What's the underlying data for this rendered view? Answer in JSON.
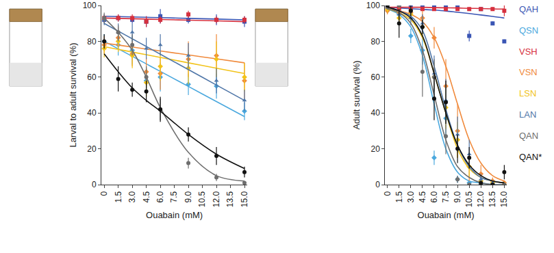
{
  "chart_data": [
    {
      "type": "scatter",
      "x_label": "Ouabain (mM)",
      "y_label": "Larval to adult survival (%)",
      "xlim": [
        -0.3,
        15.3
      ],
      "ylim": [
        0,
        100
      ],
      "xticks": [
        0,
        1.5,
        {
          "value": 3,
          "label": "3.0"
        },
        {
          "value": 4.5,
          "label": "4.5"
        },
        {
          "value": 6,
          "label": "6.0"
        },
        {
          "value": 7.5,
          "label": "7.5"
        },
        {
          "value": 9,
          "label": "9.0"
        },
        10.5,
        {
          "value": 12,
          "label": "12.0"
        },
        13.5,
        {
          "value": 15,
          "label": "15.0"
        }
      ],
      "yticks": [
        0,
        20,
        40,
        60,
        80,
        100
      ],
      "grid": false,
      "x": [
        0,
        1.5,
        3,
        4.5,
        6,
        9,
        12,
        15
      ],
      "series": [
        {
          "name": "QAH",
          "color": "#3a55b4",
          "marker": "square",
          "values": [
            92,
            93,
            92,
            91,
            94,
            92,
            92,
            91
          ],
          "errors": [
            2,
            2,
            2,
            3,
            4,
            2,
            3,
            3
          ],
          "fit": [
            94,
            93.8,
            93.6,
            93.4,
            93.2,
            92.8,
            92.4,
            92
          ]
        },
        {
          "name": "QSN",
          "color": "#4aa8de",
          "marker": "diamond",
          "values": [
            80,
            78,
            75,
            58,
            60,
            56,
            55,
            41
          ],
          "errors": [
            4,
            6,
            8,
            7,
            8,
            6,
            7,
            5
          ],
          "fit": [
            80,
            75.8,
            71.6,
            67.4,
            63.2,
            54.8,
            46.4,
            38
          ]
        },
        {
          "name": "VSH",
          "color": "#d6303e",
          "marker": "square",
          "values": [
            93,
            93,
            93,
            91,
            92,
            95,
            92,
            92
          ],
          "errors": [
            2,
            2,
            2,
            3,
            2,
            2,
            2,
            2
          ],
          "fit": [
            93,
            92.8,
            92.6,
            92.4,
            92.2,
            91.8,
            91.4,
            91
          ]
        },
        {
          "name": "VSN",
          "color": "#f08a3c",
          "marker": "diamond",
          "values": [
            78,
            82,
            73,
            63,
            62,
            70,
            72,
            58
          ],
          "errors": [
            5,
            6,
            7,
            8,
            9,
            10,
            12,
            10
          ],
          "fit": [
            79,
            77.9,
            76.8,
            75.7,
            74.6,
            72.4,
            70.2,
            68
          ]
        },
        {
          "name": "LSN",
          "color": "#f2c31a",
          "marker": "diamond",
          "values": [
            76,
            80,
            72,
            57,
            66,
            65,
            70,
            60
          ],
          "errors": [
            5,
            6,
            7,
            8,
            8,
            9,
            10,
            8
          ],
          "fit": [
            77,
            75.5,
            74,
            72.5,
            71,
            68,
            65,
            62
          ]
        },
        {
          "name": "LAN",
          "color": "#4f76a8",
          "marker": "triangle-up",
          "values": [
            92,
            85,
            85,
            76,
            78,
            72,
            58,
            47
          ],
          "errors": [
            3,
            5,
            5,
            6,
            6,
            7,
            7,
            6
          ],
          "fit": [
            90,
            85.7,
            81.4,
            77.1,
            72.8,
            64.2,
            55.6,
            47
          ]
        },
        {
          "name": "QAN",
          "color": "#6e6e6e",
          "marker": "circle",
          "values": [
            93,
            85,
            78,
            60,
            42,
            12,
            4,
            1
          ],
          "errors": [
            3,
            4,
            6,
            6,
            6,
            3,
            2,
            1
          ],
          "fit": [
            93,
            85,
            75,
            60,
            43,
            18,
            5,
            2
          ]
        },
        {
          "name": "QAN*",
          "color": "#111111",
          "marker": "circle",
          "values": [
            80,
            59,
            53,
            52,
            42,
            28,
            16,
            7
          ],
          "errors": [
            4,
            7,
            4,
            6,
            7,
            4,
            5,
            3
          ],
          "fit": [
            73,
            63,
            54,
            47,
            41,
            28,
            17,
            9
          ]
        }
      ]
    },
    {
      "type": "scatter",
      "x_label": "Ouabain (mM)",
      "y_label": "Adult survival (%)",
      "xlim": [
        -0.3,
        15.3
      ],
      "ylim": [
        0,
        100
      ],
      "xticks": [
        0,
        1.5,
        {
          "value": 3,
          "label": "3.0"
        },
        {
          "value": 4.5,
          "label": "4.5"
        },
        {
          "value": 6,
          "label": "6.0"
        },
        {
          "value": 7.5,
          "label": "7.5"
        },
        {
          "value": 9,
          "label": "9.0"
        },
        10.5,
        {
          "value": 12,
          "label": "12.0"
        },
        13.5,
        {
          "value": 15,
          "label": "15.0"
        }
      ],
      "yticks": [
        0,
        20,
        40,
        60,
        80,
        100
      ],
      "grid": false,
      "x": [
        0,
        1.5,
        3,
        4.5,
        6,
        7.5,
        9,
        10.5,
        12,
        13.5,
        15
      ],
      "series": [
        {
          "name": "QAH",
          "color": "#3a55b4",
          "marker": "square",
          "values": [
            100,
            99,
            100,
            100,
            100,
            100,
            100,
            83,
            98,
            90,
            80
          ],
          "errors": [
            1,
            1,
            1,
            1,
            1,
            1,
            1,
            3,
            1,
            1,
            1
          ],
          "fit": [
            99,
            98.6,
            98.2,
            97.8,
            97.4,
            96.9,
            96.2,
            95.5,
            94.7,
            93.9,
            93
          ]
        },
        {
          "name": "QSN",
          "color": "#4aa8de",
          "marker": "diamond",
          "values": [
            98,
            95,
            83,
            75,
            15,
            37,
            3,
            1,
            0,
            0,
            0
          ],
          "errors": [
            2,
            3,
            4,
            8,
            4,
            10,
            2,
            1,
            1,
            1,
            1
          ],
          "fit": [
            98,
            95,
            88,
            72,
            45,
            20,
            7,
            2,
            1,
            0,
            0
          ]
        },
        {
          "name": "VSH",
          "color": "#d6303e",
          "marker": "square",
          "values": [
            98,
            98,
            98,
            98,
            98,
            98,
            98,
            98,
            98,
            98,
            97
          ],
          "errors": [
            1,
            1,
            1,
            1,
            1,
            1,
            1,
            1,
            1,
            1,
            3
          ],
          "fit": [
            99,
            99,
            99,
            99,
            98.8,
            98.7,
            98.6,
            98.4,
            98.3,
            98.1,
            98
          ]
        },
        {
          "name": "VSN",
          "color": "#f08a3c",
          "marker": "diamond",
          "values": [
            97,
            96,
            96,
            93,
            82,
            55,
            30,
            10,
            6,
            2,
            1
          ],
          "errors": [
            2,
            3,
            3,
            4,
            6,
            15,
            15,
            8,
            5,
            2,
            1
          ],
          "fit": [
            98,
            97,
            95,
            91,
            82,
            66,
            45,
            25,
            12,
            5,
            2
          ]
        },
        {
          "name": "LSN",
          "color": "#f2c31a",
          "marker": "diamond",
          "values": [
            98,
            93,
            95,
            88,
            60,
            43,
            25,
            10,
            2,
            1,
            0
          ],
          "errors": [
            2,
            4,
            3,
            5,
            8,
            12,
            10,
            6,
            2,
            1,
            1
          ],
          "fit": [
            98,
            96,
            92,
            82,
            62,
            40,
            20,
            9,
            4,
            2,
            1
          ]
        },
        {
          "name": "LAN",
          "color": "#4f76a8",
          "marker": "triangle-up",
          "values": [
            99,
            95,
            93,
            90,
            62,
            47,
            28,
            17,
            3,
            1,
            0
          ],
          "errors": [
            1,
            3,
            4,
            5,
            10,
            12,
            10,
            8,
            3,
            1,
            1
          ],
          "fit": [
            99,
            97,
            94,
            86,
            66,
            42,
            22,
            10,
            4,
            2,
            1
          ]
        },
        {
          "name": "QAN",
          "color": "#6e6e6e",
          "marker": "circle",
          "values": [
            99,
            100,
            97,
            63,
            60,
            27,
            3,
            0,
            0,
            0,
            0
          ],
          "errors": [
            1,
            1,
            2,
            14,
            10,
            10,
            2,
            1,
            1,
            1,
            1
          ],
          "fit": [
            98,
            96,
            90,
            75,
            50,
            25,
            10,
            4,
            1,
            0,
            0
          ]
        },
        {
          "name": "QAN*",
          "color": "#111111",
          "marker": "circle",
          "values": [
            100,
            90,
            97,
            88,
            48,
            46,
            20,
            15,
            1,
            0,
            7
          ],
          "errors": [
            1,
            8,
            3,
            4,
            12,
            12,
            8,
            6,
            1,
            1,
            4
          ],
          "fit": [
            99,
            97,
            93,
            83,
            62,
            40,
            22,
            11,
            5,
            2,
            1
          ]
        }
      ]
    }
  ]
}
